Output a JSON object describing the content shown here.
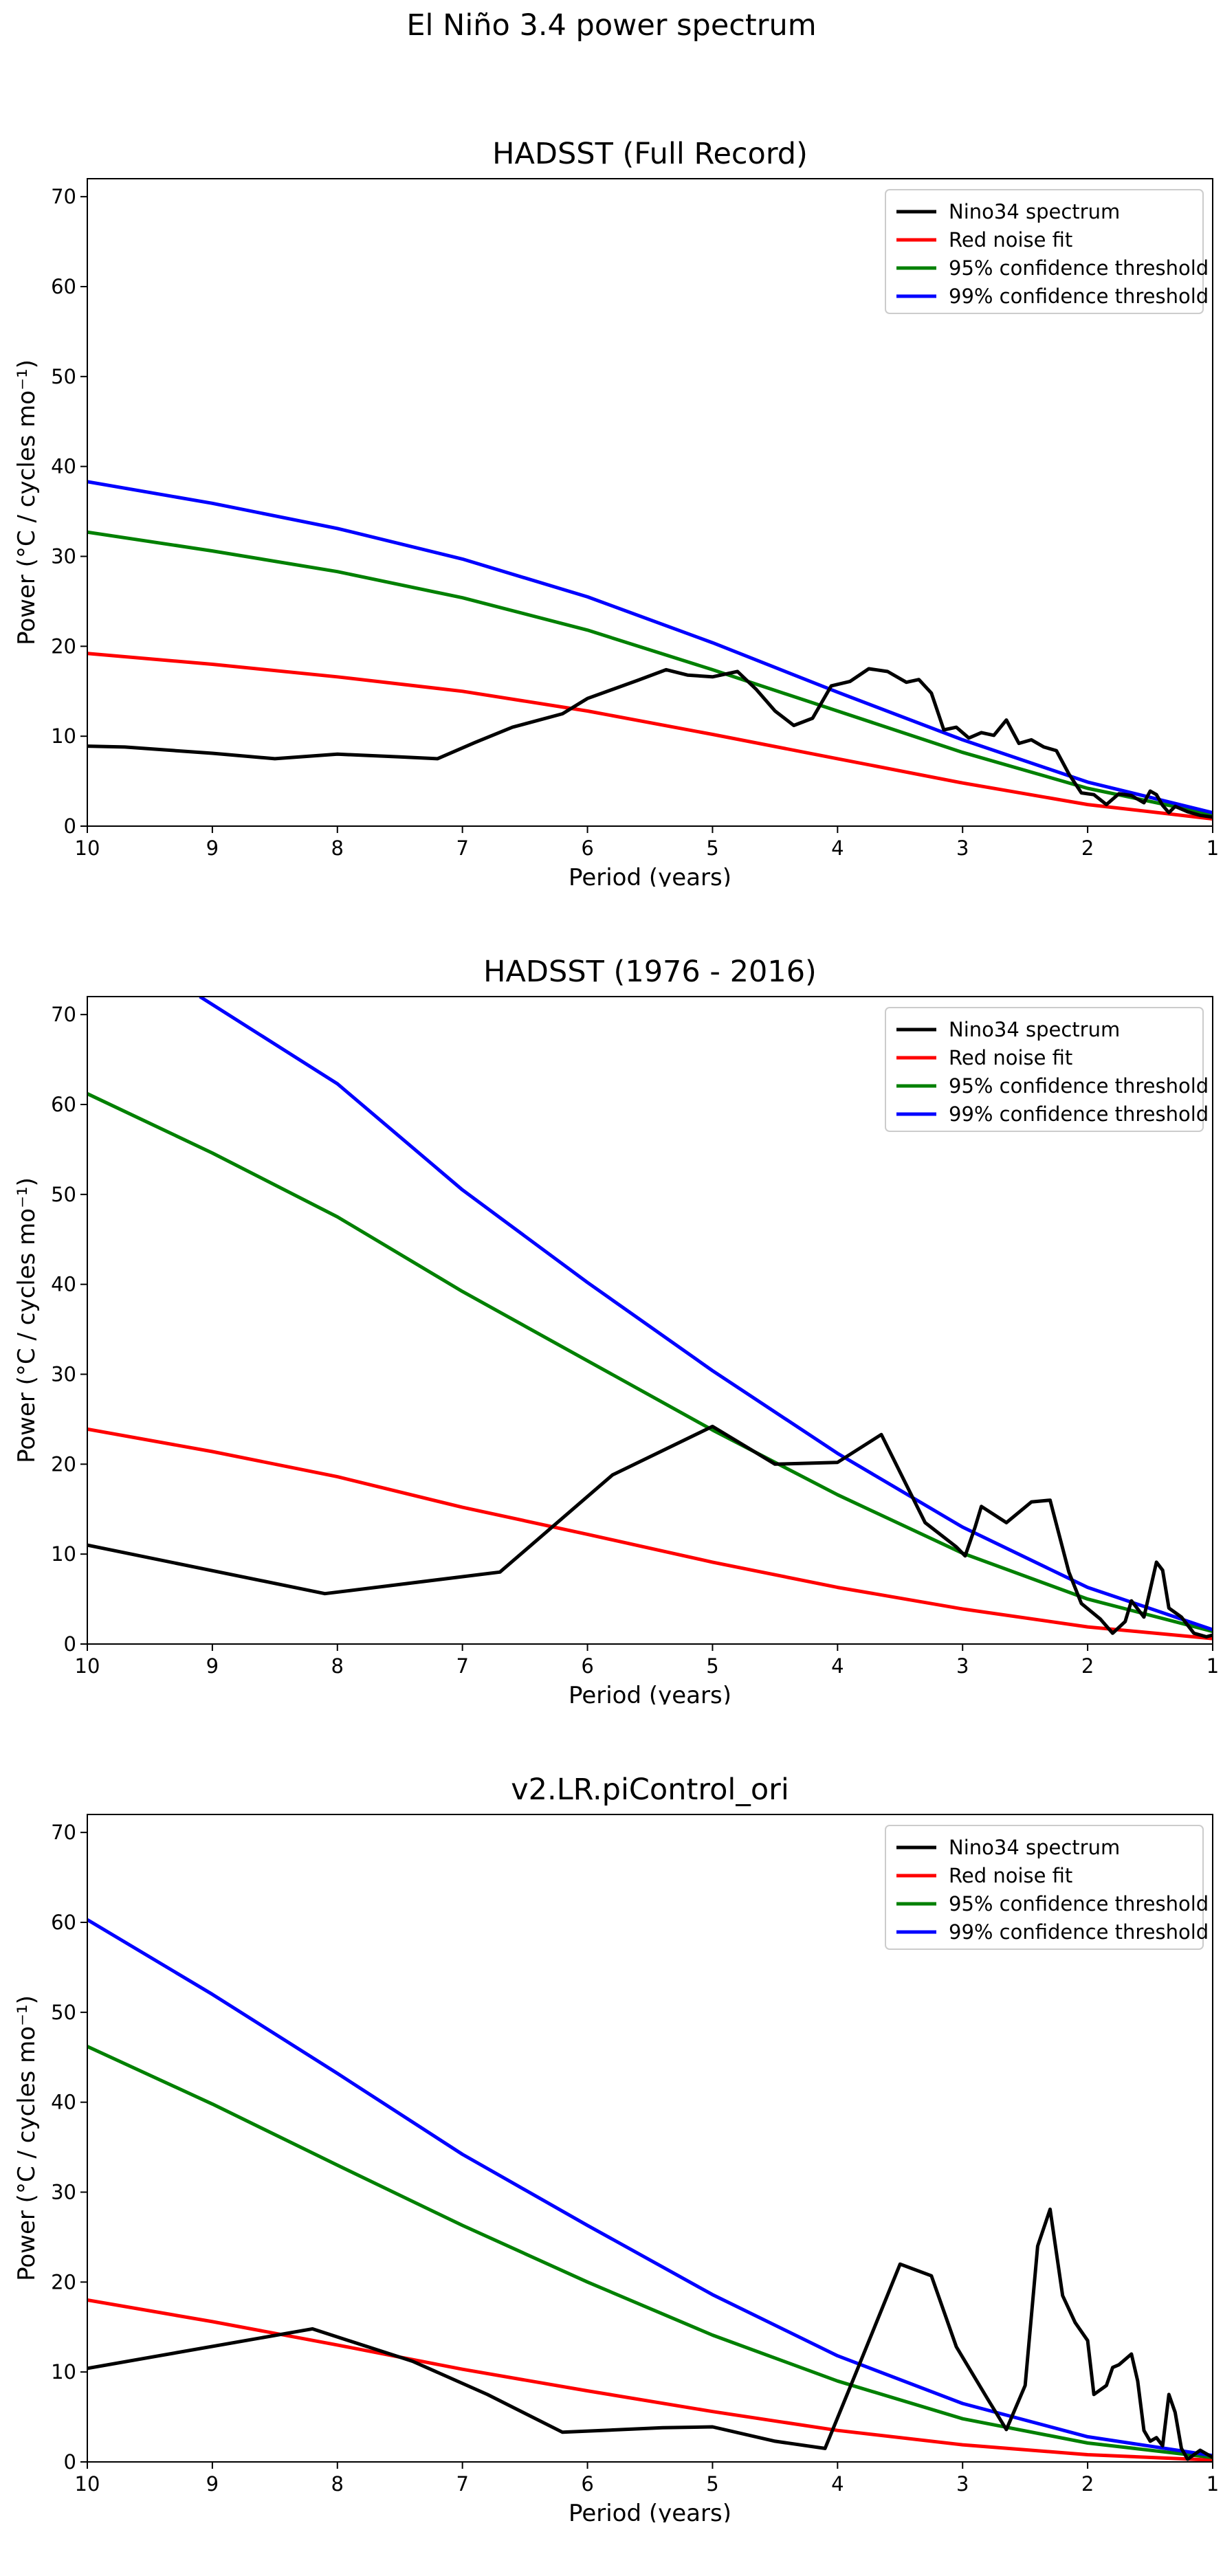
{
  "figure": {
    "title": "El Niño 3.4 power spectrum"
  },
  "chart_data": [
    {
      "type": "line",
      "title": "HADSST (Full Record)",
      "xlabel": "Period (years)",
      "ylabel": "Power (°C / cycles mo⁻¹)",
      "xlim": [
        10,
        1
      ],
      "ylim": [
        0,
        72
      ],
      "xticks": [
        10,
        9,
        8,
        7,
        6,
        5,
        4,
        3,
        2,
        1
      ],
      "yticks": [
        0,
        10,
        20,
        30,
        40,
        50,
        60,
        70
      ],
      "legend_position": "upper right",
      "series": [
        {
          "name": "Nino34 spectrum",
          "color": "#000000",
          "points": [
            [
              10,
              8.9
            ],
            [
              9.7,
              8.8
            ],
            [
              9,
              8.1
            ],
            [
              8.5,
              7.5
            ],
            [
              8,
              8
            ],
            [
              7.5,
              7.7
            ],
            [
              7.2,
              7.5
            ],
            [
              6.9,
              9.3
            ],
            [
              6.6,
              11
            ],
            [
              6.2,
              12.5
            ],
            [
              6,
              14.2
            ],
            [
              5.6,
              16.2
            ],
            [
              5.37,
              17.4
            ],
            [
              5.2,
              16.8
            ],
            [
              5,
              16.6
            ],
            [
              4.8,
              17.2
            ],
            [
              4.65,
              15.2
            ],
            [
              4.5,
              12.8
            ],
            [
              4.35,
              11.2
            ],
            [
              4.2,
              12
            ],
            [
              4.05,
              15.6
            ],
            [
              3.9,
              16.1
            ],
            [
              3.75,
              17.5
            ],
            [
              3.6,
              17.2
            ],
            [
              3.45,
              16
            ],
            [
              3.35,
              16.3
            ],
            [
              3.25,
              14.8
            ],
            [
              3.15,
              10.7
            ],
            [
              3.05,
              11
            ],
            [
              2.95,
              9.8
            ],
            [
              2.85,
              10.4
            ],
            [
              2.75,
              10.1
            ],
            [
              2.65,
              11.8
            ],
            [
              2.55,
              9.2
            ],
            [
              2.45,
              9.6
            ],
            [
              2.35,
              8.8
            ],
            [
              2.25,
              8.4
            ],
            [
              2.15,
              5.8
            ],
            [
              2.05,
              3.7
            ],
            [
              1.95,
              3.5
            ],
            [
              1.85,
              2.4
            ],
            [
              1.75,
              3.6
            ],
            [
              1.65,
              3.4
            ],
            [
              1.55,
              2.6
            ],
            [
              1.5,
              3.9
            ],
            [
              1.45,
              3.5
            ],
            [
              1.4,
              2.3
            ],
            [
              1.35,
              1.5
            ],
            [
              1.3,
              2.2
            ],
            [
              1.2,
              1.6
            ],
            [
              1.1,
              1.2
            ],
            [
              1,
              1.0
            ]
          ]
        },
        {
          "name": "Red noise fit",
          "color": "#ff0000",
          "points": [
            [
              10,
              19.2
            ],
            [
              9,
              18
            ],
            [
              8,
              16.6
            ],
            [
              7,
              15
            ],
            [
              6,
              12.8
            ],
            [
              5,
              10.2
            ],
            [
              4,
              7.5
            ],
            [
              3,
              4.8
            ],
            [
              2,
              2.4
            ],
            [
              1,
              0.8
            ]
          ]
        },
        {
          "name": "95% confidence threshold",
          "color": "#008000",
          "points": [
            [
              10,
              32.7
            ],
            [
              9,
              30.6
            ],
            [
              8,
              28.3
            ],
            [
              7,
              25.4
            ],
            [
              6,
              21.8
            ],
            [
              5,
              17.4
            ],
            [
              4,
              12.8
            ],
            [
              3,
              8.2
            ],
            [
              2,
              4.2
            ],
            [
              1,
              1.3
            ]
          ]
        },
        {
          "name": "99% confidence threshold",
          "color": "#0000ff",
          "points": [
            [
              10,
              38.3
            ],
            [
              9,
              35.9
            ],
            [
              8,
              33.1
            ],
            [
              7,
              29.7
            ],
            [
              6,
              25.5
            ],
            [
              5,
              20.4
            ],
            [
              4,
              14.9
            ],
            [
              3,
              9.6
            ],
            [
              2,
              4.9
            ],
            [
              1,
              1.5
            ]
          ]
        }
      ]
    },
    {
      "type": "line",
      "title": "HADSST (1976 - 2016)",
      "xlabel": "Period (years)",
      "ylabel": "Power (°C / cycles mo⁻¹)",
      "xlim": [
        10,
        1
      ],
      "ylim": [
        0,
        72
      ],
      "xticks": [
        10,
        9,
        8,
        7,
        6,
        5,
        4,
        3,
        2,
        1
      ],
      "yticks": [
        0,
        10,
        20,
        30,
        40,
        50,
        60,
        70
      ],
      "legend_position": "upper right",
      "series": [
        {
          "name": "Nino34 spectrum",
          "color": "#000000",
          "points": [
            [
              10,
              11
            ],
            [
              8.1,
              5.6
            ],
            [
              6.7,
              8
            ],
            [
              5.8,
              18.8
            ],
            [
              5,
              24.2
            ],
            [
              4.5,
              20
            ],
            [
              4,
              20.2
            ],
            [
              3.65,
              23.3
            ],
            [
              3.3,
              13.5
            ],
            [
              3.05,
              10.8
            ],
            [
              2.98,
              9.8
            ],
            [
              2.9,
              13
            ],
            [
              2.85,
              15.3
            ],
            [
              2.65,
              13.5
            ],
            [
              2.45,
              15.8
            ],
            [
              2.3,
              16
            ],
            [
              2.15,
              8
            ],
            [
              2.05,
              4.5
            ],
            [
              1.9,
              2.8
            ],
            [
              1.8,
              1.2
            ],
            [
              1.7,
              2.5
            ],
            [
              1.65,
              4.8
            ],
            [
              1.55,
              3
            ],
            [
              1.45,
              9.1
            ],
            [
              1.4,
              8.2
            ],
            [
              1.35,
              4
            ],
            [
              1.25,
              3
            ],
            [
              1.15,
              1.2
            ],
            [
              1.05,
              0.8
            ],
            [
              1,
              1
            ]
          ]
        },
        {
          "name": "Red noise fit",
          "color": "#ff0000",
          "points": [
            [
              10,
              23.9
            ],
            [
              9,
              21.4
            ],
            [
              8,
              18.6
            ],
            [
              7,
              15.2
            ],
            [
              6,
              12.2
            ],
            [
              5,
              9.1
            ],
            [
              4,
              6.3
            ],
            [
              3,
              3.9
            ],
            [
              2,
              1.9
            ],
            [
              1,
              0.6
            ]
          ]
        },
        {
          "name": "95% confidence threshold",
          "color": "#008000",
          "points": [
            [
              10,
              61.2
            ],
            [
              9,
              54.6
            ],
            [
              8,
              47.5
            ],
            [
              7,
              39.2
            ],
            [
              6,
              31.5
            ],
            [
              5,
              23.8
            ],
            [
              4,
              16.6
            ],
            [
              3,
              10.1
            ],
            [
              2,
              5
            ],
            [
              1,
              1.4
            ]
          ]
        },
        {
          "name": "99% confidence threshold",
          "color": "#0000ff",
          "points": [
            [
              9.1,
              72
            ],
            [
              8,
              62.3
            ],
            [
              7,
              50.5
            ],
            [
              6,
              40.2
            ],
            [
              5,
              30.4
            ],
            [
              4,
              21.2
            ],
            [
              3,
              13
            ],
            [
              2,
              6.3
            ],
            [
              1,
              1.6
            ]
          ]
        }
      ]
    },
    {
      "type": "line",
      "title": "v2.LR.piControl_ori",
      "xlabel": "Period (years)",
      "ylabel": "Power (°C / cycles mo⁻¹)",
      "xlim": [
        10,
        1
      ],
      "ylim": [
        0,
        72
      ],
      "xticks": [
        10,
        9,
        8,
        7,
        6,
        5,
        4,
        3,
        2,
        1
      ],
      "yticks": [
        0,
        10,
        20,
        30,
        40,
        50,
        60,
        70
      ],
      "legend_position": "upper right",
      "series": [
        {
          "name": "Nino34 spectrum",
          "color": "#000000",
          "points": [
            [
              10,
              10.4
            ],
            [
              8.2,
              14.8
            ],
            [
              7.4,
              11.2
            ],
            [
              6.8,
              7.5
            ],
            [
              6.2,
              3.3
            ],
            [
              5.4,
              3.8
            ],
            [
              5,
              3.9
            ],
            [
              4.5,
              2.3
            ],
            [
              4.1,
              1.5
            ],
            [
              3.85,
              10
            ],
            [
              3.5,
              22
            ],
            [
              3.25,
              20.7
            ],
            [
              3.05,
              12.8
            ],
            [
              2.8,
              7
            ],
            [
              2.65,
              3.6
            ],
            [
              2.5,
              8.5
            ],
            [
              2.4,
              24
            ],
            [
              2.3,
              28.1
            ],
            [
              2.2,
              18.5
            ],
            [
              2.1,
              15.5
            ],
            [
              2,
              13.5
            ],
            [
              1.95,
              7.5
            ],
            [
              1.85,
              8.5
            ],
            [
              1.8,
              10.5
            ],
            [
              1.75,
              10.8
            ],
            [
              1.65,
              12
            ],
            [
              1.6,
              9
            ],
            [
              1.55,
              3.5
            ],
            [
              1.5,
              2.3
            ],
            [
              1.45,
              2.7
            ],
            [
              1.4,
              1.8
            ],
            [
              1.35,
              7.5
            ],
            [
              1.3,
              5.5
            ],
            [
              1.25,
              1.5
            ],
            [
              1.2,
              0.3
            ],
            [
              1.1,
              1.3
            ],
            [
              1,
              0.5
            ]
          ]
        },
        {
          "name": "Red noise fit",
          "color": "#ff0000",
          "points": [
            [
              10,
              18
            ],
            [
              9,
              15.6
            ],
            [
              8,
              13
            ],
            [
              7,
              10.3
            ],
            [
              6,
              7.9
            ],
            [
              5,
              5.6
            ],
            [
              4,
              3.5
            ],
            [
              3,
              1.9
            ],
            [
              2,
              0.8
            ],
            [
              1,
              0.2
            ]
          ]
        },
        {
          "name": "95% confidence threshold",
          "color": "#008000",
          "points": [
            [
              10,
              46.2
            ],
            [
              9,
              39.8
            ],
            [
              8,
              33
            ],
            [
              7,
              26.3
            ],
            [
              6,
              20
            ],
            [
              5,
              14.1
            ],
            [
              4,
              9
            ],
            [
              3,
              4.8
            ],
            [
              2,
              2.1
            ],
            [
              1,
              0.5
            ]
          ]
        },
        {
          "name": "99% confidence threshold",
          "color": "#0000ff",
          "points": [
            [
              10,
              60.3
            ],
            [
              9,
              52
            ],
            [
              8,
              43.2
            ],
            [
              7,
              34.2
            ],
            [
              6,
              26.3
            ],
            [
              5,
              18.6
            ],
            [
              4,
              11.8
            ],
            [
              3,
              6.5
            ],
            [
              2,
              2.8
            ],
            [
              1,
              0.7
            ]
          ]
        }
      ]
    }
  ]
}
